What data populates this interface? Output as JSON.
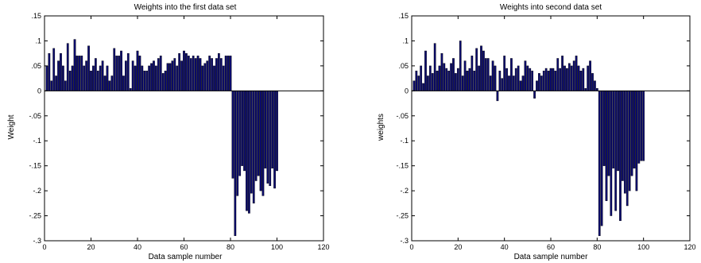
{
  "colors": {
    "bar_fill": "#0b0b6e",
    "bar_edge": "#000000",
    "axes": "#000000",
    "background": "#ffffff"
  },
  "chart_data": [
    {
      "type": "bar",
      "title": "Weights into the first data set",
      "xlabel": "Data sample number",
      "ylabel": "Weight",
      "xlim": [
        0,
        120
      ],
      "ylim": [
        -0.3,
        0.15
      ],
      "xticks": [
        0,
        20,
        40,
        60,
        80,
        100,
        120
      ],
      "yticks": [
        -0.3,
        -0.25,
        -0.2,
        -0.15,
        -0.1,
        -0.05,
        0,
        0.05,
        0.1,
        0.15
      ],
      "grid": false,
      "x": [
        1,
        2,
        3,
        4,
        5,
        6,
        7,
        8,
        9,
        10,
        11,
        12,
        13,
        14,
        15,
        16,
        17,
        18,
        19,
        20,
        21,
        22,
        23,
        24,
        25,
        26,
        27,
        28,
        29,
        30,
        31,
        32,
        33,
        34,
        35,
        36,
        37,
        38,
        39,
        40,
        41,
        42,
        43,
        44,
        45,
        46,
        47,
        48,
        49,
        50,
        51,
        52,
        53,
        54,
        55,
        56,
        57,
        58,
        59,
        60,
        61,
        62,
        63,
        64,
        65,
        66,
        67,
        68,
        69,
        70,
        71,
        72,
        73,
        74,
        75,
        76,
        77,
        78,
        79,
        80,
        81,
        82,
        83,
        84,
        85,
        86,
        87,
        88,
        89,
        90,
        91,
        92,
        93,
        94,
        95,
        96,
        97,
        98,
        99,
        100
      ],
      "values": [
        0.05,
        0.075,
        0.02,
        0.085,
        0.03,
        0.06,
        0.075,
        0.05,
        0.02,
        0.095,
        0.04,
        0.05,
        0.103,
        0.07,
        0.07,
        0.07,
        0.05,
        0.06,
        0.09,
        0.04,
        0.05,
        0.065,
        0.04,
        0.05,
        0.06,
        0.03,
        0.05,
        0.02,
        0.03,
        0.085,
        0.07,
        0.07,
        0.08,
        0.03,
        0.06,
        0.075,
        0.005,
        0.06,
        0.05,
        0.08,
        0.07,
        0.05,
        0.04,
        0.04,
        0.05,
        0.055,
        0.06,
        0.05,
        0.065,
        0.07,
        0.035,
        0.04,
        0.055,
        0.055,
        0.06,
        0.065,
        0.05,
        0.075,
        0.06,
        0.08,
        0.075,
        0.07,
        0.065,
        0.07,
        0.065,
        0.07,
        0.065,
        0.05,
        0.055,
        0.06,
        0.07,
        0.065,
        0.05,
        0.065,
        0.075,
        0.065,
        0.05,
        0.07,
        0.07,
        0.07,
        -0.175,
        -0.29,
        -0.21,
        -0.17,
        -0.15,
        -0.16,
        -0.24,
        -0.245,
        -0.205,
        -0.225,
        -0.18,
        -0.17,
        -0.2,
        -0.21,
        -0.155,
        -0.185,
        -0.19,
        -0.155,
        -0.195,
        -0.16
      ]
    },
    {
      "type": "bar",
      "title": "Weights into second data set",
      "xlabel": "Data sample number",
      "ylabel": "weights",
      "xlim": [
        0,
        120
      ],
      "ylim": [
        -0.3,
        0.15
      ],
      "xticks": [
        0,
        20,
        40,
        60,
        80,
        100,
        120
      ],
      "yticks": [
        -0.3,
        -0.25,
        -0.2,
        -0.15,
        -0.1,
        -0.05,
        0,
        0.05,
        0.1,
        0.15
      ],
      "grid": false,
      "x": [
        1,
        2,
        3,
        4,
        5,
        6,
        7,
        8,
        9,
        10,
        11,
        12,
        13,
        14,
        15,
        16,
        17,
        18,
        19,
        20,
        21,
        22,
        23,
        24,
        25,
        26,
        27,
        28,
        29,
        30,
        31,
        32,
        33,
        34,
        35,
        36,
        37,
        38,
        39,
        40,
        41,
        42,
        43,
        44,
        45,
        46,
        47,
        48,
        49,
        50,
        51,
        52,
        53,
        54,
        55,
        56,
        57,
        58,
        59,
        60,
        61,
        62,
        63,
        64,
        65,
        66,
        67,
        68,
        69,
        70,
        71,
        72,
        73,
        74,
        75,
        76,
        77,
        78,
        79,
        80,
        81,
        82,
        83,
        84,
        85,
        86,
        87,
        88,
        89,
        90,
        91,
        92,
        93,
        94,
        95,
        96,
        97,
        98,
        99,
        100
      ],
      "values": [
        0.02,
        0.04,
        0.03,
        0.05,
        0.015,
        0.08,
        0.03,
        0.05,
        0.035,
        0.095,
        0.04,
        0.05,
        0.075,
        0.055,
        0.045,
        0.04,
        0.055,
        0.065,
        0.035,
        0.045,
        0.1,
        0.03,
        0.06,
        0.04,
        0.045,
        0.07,
        0.04,
        0.085,
        0.05,
        0.09,
        0.08,
        0.065,
        0.065,
        0.03,
        0.06,
        0.05,
        -0.02,
        0.04,
        0.025,
        0.07,
        0.045,
        0.03,
        0.065,
        0.03,
        0.045,
        0.05,
        0.02,
        0.03,
        0.06,
        0.05,
        0.045,
        0.04,
        -0.015,
        0.02,
        0.035,
        0.03,
        0.04,
        0.045,
        0.04,
        0.045,
        0.045,
        0.04,
        0.065,
        0.045,
        0.07,
        0.05,
        0.045,
        0.055,
        0.05,
        0.06,
        0.07,
        0.05,
        0.04,
        0.045,
        0.005,
        0.05,
        0.06,
        0.035,
        0.02,
        0.005,
        -0.29,
        -0.27,
        -0.15,
        -0.22,
        -0.17,
        -0.25,
        -0.155,
        -0.24,
        -0.16,
        -0.26,
        -0.18,
        -0.205,
        -0.23,
        -0.2,
        -0.17,
        -0.155,
        -0.2,
        -0.145,
        -0.14,
        -0.14
      ]
    }
  ]
}
